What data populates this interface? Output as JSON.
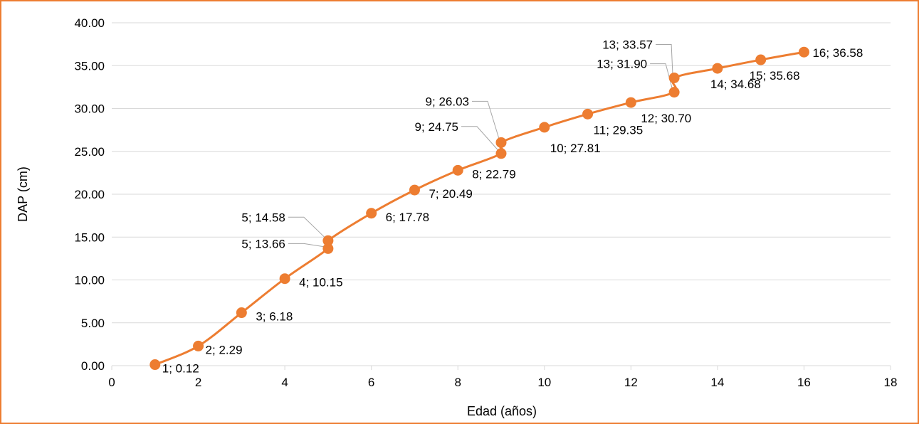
{
  "chart_data": {
    "type": "scatter",
    "title": "",
    "xlabel": "Edad (años)",
    "ylabel": "DAP (cm)",
    "xlim": [
      0,
      18
    ],
    "ylim": [
      0,
      40
    ],
    "x_ticks": [
      "0",
      "2",
      "4",
      "6",
      "8",
      "10",
      "12",
      "14",
      "16",
      "18"
    ],
    "y_ticks": [
      "0.00",
      "5.00",
      "10.00",
      "15.00",
      "20.00",
      "25.00",
      "30.00",
      "35.00",
      "40.00"
    ],
    "grid": "horizontal",
    "legend": "none",
    "series_color": "#ED7D31",
    "gridline_color": "#D9D9D9",
    "leader_line_color": "#A6A6A6",
    "series": [
      {
        "points": [
          {
            "x": 1,
            "y": 0.12,
            "label": "1; 0.12"
          },
          {
            "x": 2,
            "y": 2.29,
            "label": "2; 2.29"
          },
          {
            "x": 3,
            "y": 6.18,
            "label": "3; 6.18"
          },
          {
            "x": 4,
            "y": 10.15,
            "label": "4; 10.15"
          },
          {
            "x": 5,
            "y": 13.66,
            "label": "5; 13.66"
          },
          {
            "x": 5,
            "y": 14.58,
            "label": "5; 14.58"
          },
          {
            "x": 6,
            "y": 17.78,
            "label": "6; 17.78"
          },
          {
            "x": 7,
            "y": 20.49,
            "label": "7; 20.49"
          },
          {
            "x": 8,
            "y": 22.79,
            "label": "8; 22.79"
          },
          {
            "x": 9,
            "y": 24.75,
            "label": "9; 24.75"
          },
          {
            "x": 9,
            "y": 26.03,
            "label": "9; 26.03"
          },
          {
            "x": 10,
            "y": 27.81,
            "label": "10; 27.81"
          },
          {
            "x": 11,
            "y": 29.35,
            "label": "11; 29.35"
          },
          {
            "x": 12,
            "y": 30.7,
            "label": "12; 30.70"
          },
          {
            "x": 13,
            "y": 31.9,
            "label": "13; 31.90"
          },
          {
            "x": 13,
            "y": 33.57,
            "label": "13; 33.57"
          },
          {
            "x": 14,
            "y": 34.68,
            "label": "14; 34.68"
          },
          {
            "x": 15,
            "y": 35.68,
            "label": "15; 35.68"
          },
          {
            "x": 16,
            "y": 36.58,
            "label": "16; 36.58"
          }
        ]
      }
    ]
  }
}
